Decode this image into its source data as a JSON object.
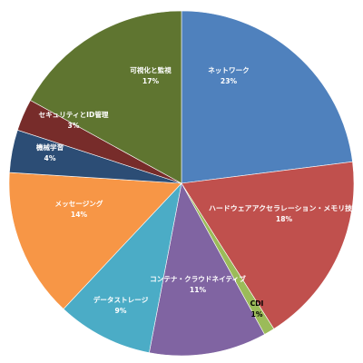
{
  "chart_data": {
    "type": "pie",
    "title": "",
    "start_angle_deg": 0,
    "direction": "clockwise",
    "legend": "none",
    "slices": [
      {
        "label": "ネットワーク",
        "value": 23,
        "value_label": "23%",
        "color": "#4f81bd",
        "label_color": "#ffffff"
      },
      {
        "label": "ハードウェアアクセラレーション・メモリ技術",
        "value": 18,
        "value_label": "18%",
        "color": "#c0504d",
        "label_color": "#ffffff"
      },
      {
        "label": "CDI",
        "value": 1,
        "value_label": "1%",
        "color": "#9bbb59",
        "label_color": "#000000"
      },
      {
        "label": "コンテナ・クラウドネイティブ",
        "value": 11,
        "value_label": "11%",
        "color": "#8064a2",
        "label_color": "#ffffff"
      },
      {
        "label": "データストレージ",
        "value": 9,
        "value_label": "9%",
        "color": "#4bacc6",
        "label_color": "#ffffff"
      },
      {
        "label": "メッセージング",
        "value": 14,
        "value_label": "14%",
        "color": "#f79646",
        "label_color": "#ffffff"
      },
      {
        "label": "機械学習",
        "value": 4,
        "value_label": "4%",
        "color": "#2c4d75",
        "label_color": "#ffffff"
      },
      {
        "label": "セキュリティとID管理",
        "value": 3,
        "value_label": "3%",
        "color": "#772c2a",
        "label_color": "#ffffff"
      },
      {
        "label": "可視化と監視",
        "value": 17,
        "value_label": "17%",
        "color": "#5f7530",
        "label_color": "#ffffff"
      }
    ]
  }
}
